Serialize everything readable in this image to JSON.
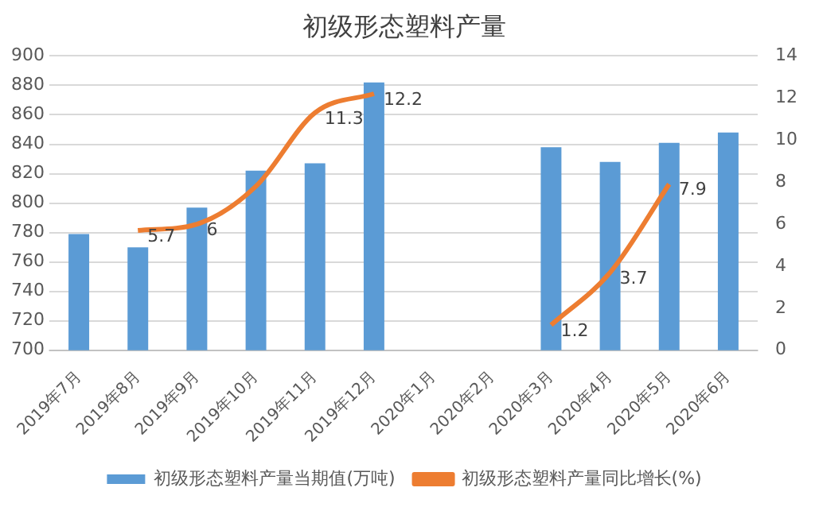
{
  "chart_data": {
    "type": "bar",
    "title": "初级形态塑料产量",
    "categories": [
      "2019年7月",
      "2019年8月",
      "2019年9月",
      "2019年10月",
      "2019年11月",
      "2019年12月",
      "2020年1月",
      "2020年2月",
      "2020年3月",
      "2020年4月",
      "2020年5月",
      "2020年6月"
    ],
    "series": [
      {
        "name": "初级形态塑料产量当期值(万吨)",
        "color": "#5b9bd5",
        "values": [
          779,
          770,
          797,
          822,
          827,
          882,
          null,
          null,
          838,
          828,
          841,
          848
        ]
      },
      {
        "name": "初级形态塑料产量同比增长(%)",
        "type": "line",
        "axis": "y2",
        "color": "#ed7d31",
        "values": [
          null,
          5.7,
          6,
          7.8,
          11.3,
          12.2,
          null,
          null,
          1.2,
          3.7,
          7.9,
          null
        ],
        "value_labels": [
          null,
          "5.7",
          "6",
          null,
          "11.3",
          "12.2",
          null,
          null,
          "1.2",
          "3.7",
          "7.9",
          null
        ]
      }
    ],
    "ylim": [
      700,
      900
    ],
    "yticks": [
      700,
      720,
      740,
      760,
      780,
      800,
      820,
      840,
      860,
      880,
      900
    ],
    "y2lim": [
      0,
      14
    ],
    "y2ticks": [
      0,
      2,
      4,
      6,
      8,
      10,
      12,
      14
    ],
    "grid": "y",
    "legend": "bottom",
    "marker": "none"
  }
}
